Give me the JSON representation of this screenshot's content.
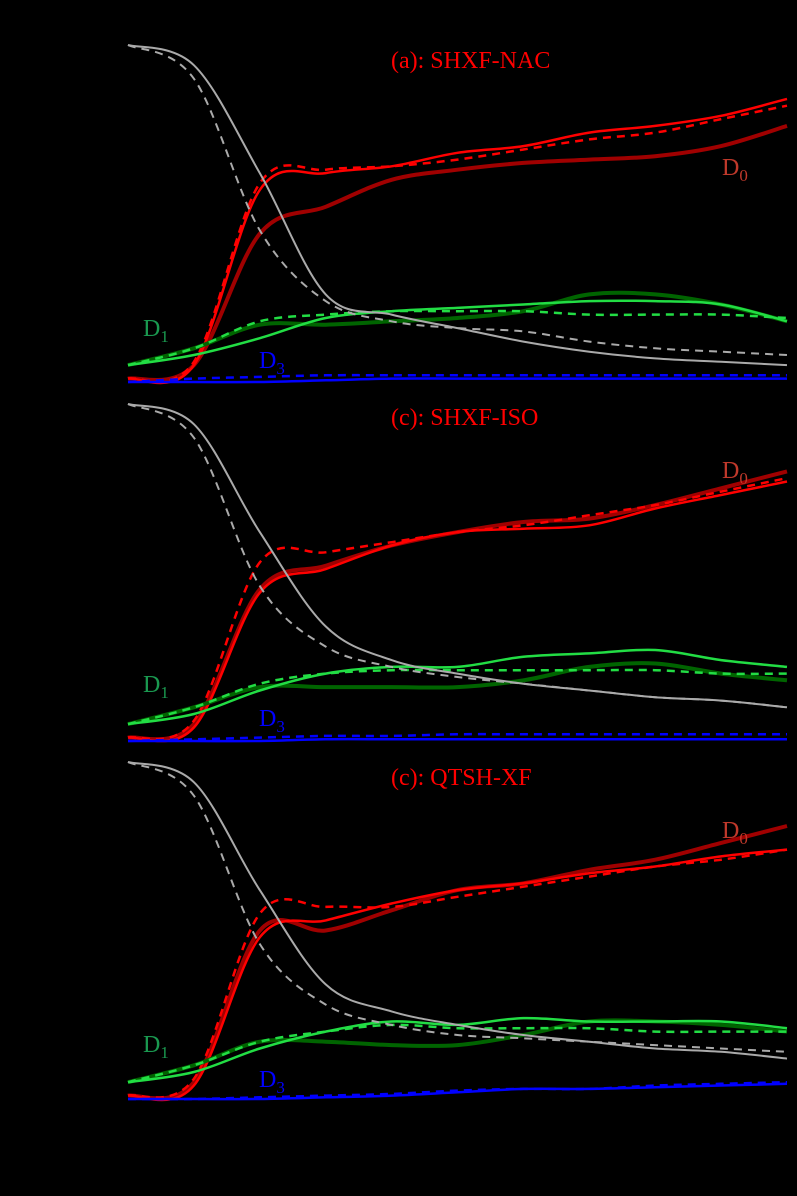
{
  "figure": {
    "background": "#000000",
    "colors": {
      "D0_dark": "#a00000",
      "D0_bright": "#ff0000",
      "D1_dark": "#006400",
      "D1_bright": "#22dd44",
      "D3": "#0000ff",
      "D2_gray": "#aaaaaa",
      "label_D0": "#c0392b",
      "label_D1": "#1a9950",
      "label_D3": "#0000ff",
      "title": "#ff0000"
    }
  },
  "chart_data": [
    {
      "type": "line",
      "title": "(a): SHXF-NAC",
      "labels": [
        {
          "text": "D",
          "sub": "0"
        },
        {
          "text": "D",
          "sub": "1"
        },
        {
          "text": "D",
          "sub": "3"
        }
      ],
      "x": [
        0,
        0.1,
        0.2,
        0.3,
        0.4,
        0.5,
        0.6,
        0.7,
        0.8,
        0.9,
        1.0
      ],
      "ylim": [
        0,
        1
      ],
      "series": [
        {
          "name": "D0 dark",
          "style": "solid-thick",
          "values": [
            0.01,
            0.05,
            0.44,
            0.52,
            0.6,
            0.63,
            0.65,
            0.66,
            0.67,
            0.7,
            0.76
          ]
        },
        {
          "name": "D0 bright",
          "style": "solid",
          "values": [
            0.01,
            0.05,
            0.57,
            0.62,
            0.64,
            0.68,
            0.7,
            0.74,
            0.76,
            0.79,
            0.84
          ]
        },
        {
          "name": "D0 bright ref",
          "style": "dashed",
          "values": [
            0.01,
            0.06,
            0.59,
            0.63,
            0.64,
            0.66,
            0.69,
            0.72,
            0.74,
            0.78,
            0.82
          ]
        },
        {
          "name": "D1 dark",
          "style": "solid-thick",
          "values": [
            0.05,
            0.1,
            0.17,
            0.17,
            0.18,
            0.19,
            0.21,
            0.26,
            0.26,
            0.23,
            0.18
          ]
        },
        {
          "name": "D1 bright",
          "style": "solid",
          "values": [
            0.05,
            0.08,
            0.13,
            0.19,
            0.21,
            0.22,
            0.23,
            0.24,
            0.24,
            0.23,
            0.18
          ]
        },
        {
          "name": "D1 bright ref",
          "style": "dashed",
          "values": [
            0.05,
            0.1,
            0.18,
            0.2,
            0.21,
            0.21,
            0.21,
            0.2,
            0.2,
            0.2,
            0.19
          ]
        },
        {
          "name": "D3",
          "style": "solid",
          "values": [
            0.0,
            0.0,
            0.0,
            0.005,
            0.01,
            0.01,
            0.01,
            0.01,
            0.01,
            0.01,
            0.01
          ]
        },
        {
          "name": "D3 ref",
          "style": "dashed",
          "values": [
            0.0,
            0.01,
            0.015,
            0.02,
            0.02,
            0.02,
            0.02,
            0.02,
            0.02,
            0.02,
            0.02
          ]
        },
        {
          "name": "gray",
          "style": "solid",
          "values": [
            1.0,
            0.94,
            0.62,
            0.26,
            0.2,
            0.16,
            0.12,
            0.09,
            0.07,
            0.06,
            0.05
          ]
        },
        {
          "name": "gray ref",
          "style": "dashed",
          "values": [
            1.0,
            0.9,
            0.45,
            0.24,
            0.18,
            0.16,
            0.15,
            0.12,
            0.1,
            0.09,
            0.08
          ]
        }
      ]
    },
    {
      "type": "line",
      "title": "(c): SHXF-ISO",
      "labels": [
        {
          "text": "D",
          "sub": "0"
        },
        {
          "text": "D",
          "sub": "1"
        },
        {
          "text": "D",
          "sub": "3"
        }
      ],
      "x": [
        0,
        0.1,
        0.2,
        0.3,
        0.4,
        0.5,
        0.6,
        0.7,
        0.8,
        0.9,
        1.0
      ],
      "ylim": [
        0,
        1
      ],
      "series": [
        {
          "name": "D0 dark",
          "style": "solid-thick",
          "values": [
            0.01,
            0.05,
            0.45,
            0.52,
            0.58,
            0.62,
            0.65,
            0.66,
            0.7,
            0.75,
            0.8
          ]
        },
        {
          "name": "D0 bright",
          "style": "solid",
          "values": [
            0.01,
            0.04,
            0.44,
            0.51,
            0.58,
            0.62,
            0.63,
            0.64,
            0.69,
            0.73,
            0.77
          ]
        },
        {
          "name": "D0 bright ref",
          "style": "dashed",
          "values": [
            0.01,
            0.06,
            0.53,
            0.56,
            0.59,
            0.62,
            0.64,
            0.67,
            0.7,
            0.74,
            0.78
          ]
        },
        {
          "name": "D1 dark",
          "style": "solid-thick",
          "values": [
            0.05,
            0.1,
            0.16,
            0.16,
            0.16,
            0.16,
            0.18,
            0.22,
            0.23,
            0.2,
            0.18
          ]
        },
        {
          "name": "D1 bright",
          "style": "solid",
          "values": [
            0.05,
            0.08,
            0.15,
            0.2,
            0.22,
            0.22,
            0.25,
            0.26,
            0.27,
            0.24,
            0.22
          ]
        },
        {
          "name": "D1 bright ref",
          "style": "dashed",
          "values": [
            0.05,
            0.1,
            0.17,
            0.2,
            0.21,
            0.21,
            0.21,
            0.21,
            0.21,
            0.2,
            0.2
          ]
        },
        {
          "name": "D3",
          "style": "solid",
          "values": [
            0.0,
            0.0,
            0.0,
            0.005,
            0.005,
            0.005,
            0.005,
            0.005,
            0.005,
            0.005,
            0.005
          ]
        },
        {
          "name": "D3 ref",
          "style": "dashed",
          "values": [
            0.0,
            0.005,
            0.01,
            0.015,
            0.015,
            0.02,
            0.02,
            0.02,
            0.02,
            0.02,
            0.02
          ]
        },
        {
          "name": "gray",
          "style": "solid",
          "values": [
            1.0,
            0.94,
            0.62,
            0.34,
            0.24,
            0.2,
            0.17,
            0.15,
            0.13,
            0.12,
            0.1
          ]
        },
        {
          "name": "gray ref",
          "style": "dashed",
          "values": [
            1.0,
            0.9,
            0.46,
            0.28,
            0.22,
            0.19,
            0.17,
            0.15,
            0.13,
            0.12,
            0.1
          ]
        }
      ]
    },
    {
      "type": "line",
      "title": "(c): QTSH-XF",
      "labels": [
        {
          "text": "D",
          "sub": "0"
        },
        {
          "text": "D",
          "sub": "1"
        },
        {
          "text": "D",
          "sub": "3"
        }
      ],
      "x": [
        0,
        0.1,
        0.2,
        0.3,
        0.4,
        0.5,
        0.6,
        0.7,
        0.8,
        0.9,
        1.0
      ],
      "ylim": [
        0,
        1
      ],
      "series": [
        {
          "name": "D0 dark",
          "style": "solid-thick",
          "values": [
            0.01,
            0.05,
            0.5,
            0.5,
            0.56,
            0.62,
            0.64,
            0.68,
            0.71,
            0.76,
            0.81
          ]
        },
        {
          "name": "D0 bright",
          "style": "solid",
          "values": [
            0.01,
            0.04,
            0.48,
            0.53,
            0.58,
            0.62,
            0.64,
            0.67,
            0.69,
            0.72,
            0.74
          ]
        },
        {
          "name": "D0 bright ref",
          "style": "dashed",
          "values": [
            0.01,
            0.06,
            0.55,
            0.57,
            0.57,
            0.6,
            0.63,
            0.66,
            0.69,
            0.71,
            0.74
          ]
        },
        {
          "name": "D1 dark",
          "style": "solid-thick",
          "values": [
            0.05,
            0.1,
            0.17,
            0.17,
            0.16,
            0.16,
            0.19,
            0.23,
            0.23,
            0.22,
            0.2
          ]
        },
        {
          "name": "D1 bright",
          "style": "solid",
          "values": [
            0.05,
            0.08,
            0.15,
            0.2,
            0.23,
            0.22,
            0.24,
            0.23,
            0.23,
            0.23,
            0.21
          ]
        },
        {
          "name": "D1 bright ref",
          "style": "dashed",
          "values": [
            0.05,
            0.1,
            0.17,
            0.2,
            0.22,
            0.21,
            0.21,
            0.21,
            0.2,
            0.2,
            0.2
          ]
        },
        {
          "name": "D3",
          "style": "solid",
          "values": [
            0.0,
            0.0,
            0.0,
            0.005,
            0.01,
            0.02,
            0.03,
            0.03,
            0.035,
            0.04,
            0.045
          ]
        },
        {
          "name": "D3 ref",
          "style": "dashed",
          "values": [
            0.0,
            0.0,
            0.005,
            0.01,
            0.015,
            0.025,
            0.03,
            0.03,
            0.04,
            0.045,
            0.05
          ]
        },
        {
          "name": "gray",
          "style": "solid",
          "values": [
            1.0,
            0.94,
            0.62,
            0.34,
            0.26,
            0.22,
            0.19,
            0.17,
            0.15,
            0.14,
            0.12
          ]
        },
        {
          "name": "gray ref",
          "style": "dashed",
          "values": [
            1.0,
            0.9,
            0.46,
            0.28,
            0.22,
            0.19,
            0.18,
            0.17,
            0.16,
            0.15,
            0.14
          ]
        }
      ]
    }
  ]
}
